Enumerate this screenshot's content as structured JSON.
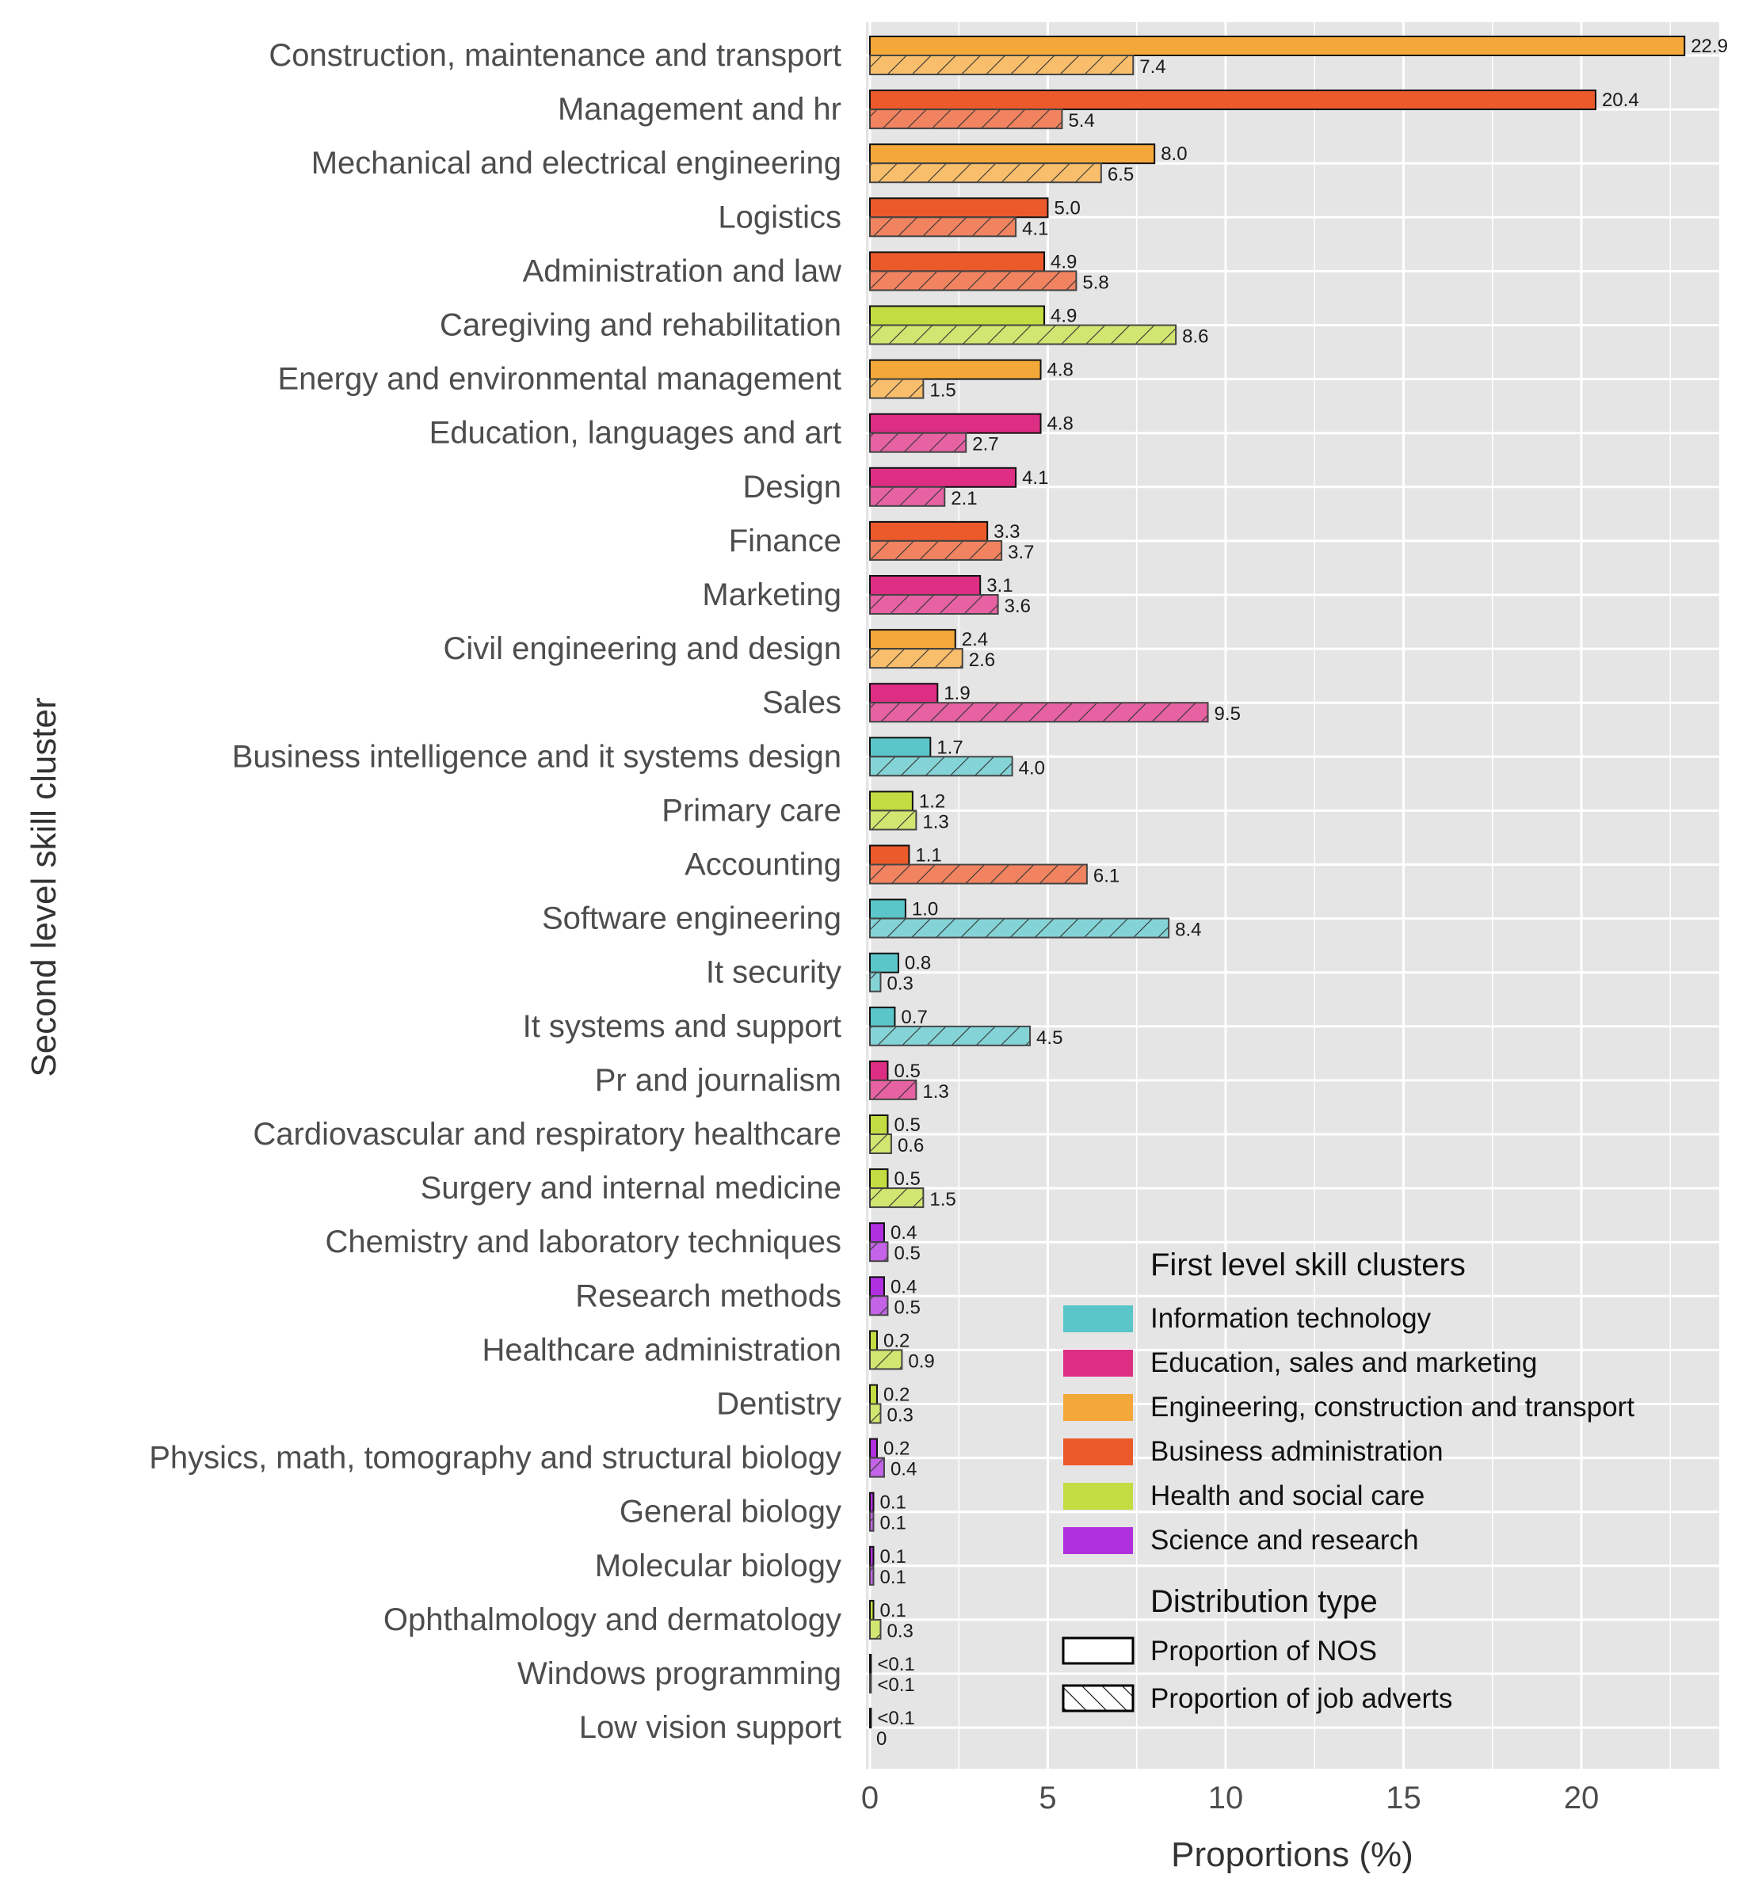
{
  "chart_data": {
    "type": "bar",
    "orientation": "horizontal",
    "xlabel": "Proportions (%)",
    "ylabel": "Second level skill cluster",
    "xlim": [
      0,
      24
    ],
    "xticks": [
      "0",
      "5",
      "10",
      "15",
      "20"
    ],
    "grid": true,
    "legend_position": "bottom-right",
    "series": [
      {
        "name": "Proportion of NOS",
        "pattern": "solid"
      },
      {
        "name": "Proportion of job adverts",
        "pattern": "hatched"
      }
    ],
    "groups": [
      {
        "name": "Information technology",
        "color": "#5bc6c9"
      },
      {
        "name": "Education, sales and marketing",
        "color": "#de2e84"
      },
      {
        "name": "Engineering, construction and transport",
        "color": "#f5a83a"
      },
      {
        "name": "Business administration",
        "color": "#ec5a2b"
      },
      {
        "name": "Health and social care",
        "color": "#c2dc42"
      },
      {
        "name": "Science and research",
        "color": "#b02fdf"
      }
    ],
    "categories": [
      {
        "label": "Construction, maintenance and transport",
        "group": 2,
        "nos": 22.9,
        "nos_label": "22.9",
        "ads": 7.4,
        "ads_label": "7.4"
      },
      {
        "label": "Management and hr",
        "group": 3,
        "nos": 20.4,
        "nos_label": "20.4",
        "ads": 5.4,
        "ads_label": "5.4"
      },
      {
        "label": "Mechanical and electrical engineering",
        "group": 2,
        "nos": 8.0,
        "nos_label": "8.0",
        "ads": 6.5,
        "ads_label": "6.5"
      },
      {
        "label": "Logistics",
        "group": 3,
        "nos": 5.0,
        "nos_label": "5.0",
        "ads": 4.1,
        "ads_label": "4.1"
      },
      {
        "label": "Administration and law",
        "group": 3,
        "nos": 4.9,
        "nos_label": "4.9",
        "ads": 5.8,
        "ads_label": "5.8"
      },
      {
        "label": "Caregiving and rehabilitation",
        "group": 4,
        "nos": 4.9,
        "nos_label": "4.9",
        "ads": 8.6,
        "ads_label": "8.6"
      },
      {
        "label": "Energy and environmental management",
        "group": 2,
        "nos": 4.8,
        "nos_label": "4.8",
        "ads": 1.5,
        "ads_label": "1.5"
      },
      {
        "label": "Education, languages and art",
        "group": 1,
        "nos": 4.8,
        "nos_label": "4.8",
        "ads": 2.7,
        "ads_label": "2.7"
      },
      {
        "label": "Design",
        "group": 1,
        "nos": 4.1,
        "nos_label": "4.1",
        "ads": 2.1,
        "ads_label": "2.1"
      },
      {
        "label": "Finance",
        "group": 3,
        "nos": 3.3,
        "nos_label": "3.3",
        "ads": 3.7,
        "ads_label": "3.7"
      },
      {
        "label": "Marketing",
        "group": 1,
        "nos": 3.1,
        "nos_label": "3.1",
        "ads": 3.6,
        "ads_label": "3.6"
      },
      {
        "label": "Civil engineering and design",
        "group": 2,
        "nos": 2.4,
        "nos_label": "2.4",
        "ads": 2.6,
        "ads_label": "2.6"
      },
      {
        "label": "Sales",
        "group": 1,
        "nos": 1.9,
        "nos_label": "1.9",
        "ads": 9.5,
        "ads_label": "9.5"
      },
      {
        "label": "Business intelligence and it systems design",
        "group": 0,
        "nos": 1.7,
        "nos_label": "1.7",
        "ads": 4.0,
        "ads_label": "4.0"
      },
      {
        "label": "Primary care",
        "group": 4,
        "nos": 1.2,
        "nos_label": "1.2",
        "ads": 1.3,
        "ads_label": "1.3"
      },
      {
        "label": "Accounting",
        "group": 3,
        "nos": 1.1,
        "nos_label": "1.1",
        "ads": 6.1,
        "ads_label": "6.1"
      },
      {
        "label": "Software engineering",
        "group": 0,
        "nos": 1.0,
        "nos_label": "1.0",
        "ads": 8.4,
        "ads_label": "8.4"
      },
      {
        "label": "It security",
        "group": 0,
        "nos": 0.8,
        "nos_label": "0.8",
        "ads": 0.3,
        "ads_label": "0.3"
      },
      {
        "label": "It systems and support",
        "group": 0,
        "nos": 0.7,
        "nos_label": "0.7",
        "ads": 4.5,
        "ads_label": "4.5"
      },
      {
        "label": "Pr and journalism",
        "group": 1,
        "nos": 0.5,
        "nos_label": "0.5",
        "ads": 1.3,
        "ads_label": "1.3"
      },
      {
        "label": "Cardiovascular and respiratory healthcare",
        "group": 4,
        "nos": 0.5,
        "nos_label": "0.5",
        "ads": 0.6,
        "ads_label": "0.6"
      },
      {
        "label": "Surgery and internal medicine",
        "group": 4,
        "nos": 0.5,
        "nos_label": "0.5",
        "ads": 1.5,
        "ads_label": "1.5"
      },
      {
        "label": "Chemistry and laboratory techniques",
        "group": 5,
        "nos": 0.4,
        "nos_label": "0.4",
        "ads": 0.5,
        "ads_label": "0.5"
      },
      {
        "label": "Research methods",
        "group": 5,
        "nos": 0.4,
        "nos_label": "0.4",
        "ads": 0.5,
        "ads_label": "0.5"
      },
      {
        "label": "Healthcare administration",
        "group": 4,
        "nos": 0.2,
        "nos_label": "0.2",
        "ads": 0.9,
        "ads_label": "0.9"
      },
      {
        "label": "Dentistry",
        "group": 4,
        "nos": 0.2,
        "nos_label": "0.2",
        "ads": 0.3,
        "ads_label": "0.3"
      },
      {
        "label": "Physics, math, tomography and structural biology",
        "group": 5,
        "nos": 0.2,
        "nos_label": "0.2",
        "ads": 0.4,
        "ads_label": "0.4"
      },
      {
        "label": "General biology",
        "group": 5,
        "nos": 0.1,
        "nos_label": "0.1",
        "ads": 0.1,
        "ads_label": "0.1"
      },
      {
        "label": "Molecular biology",
        "group": 5,
        "nos": 0.1,
        "nos_label": "0.1",
        "ads": 0.1,
        "ads_label": "0.1"
      },
      {
        "label": "Ophthalmology and dermatology",
        "group": 4,
        "nos": 0.1,
        "nos_label": "0.1",
        "ads": 0.3,
        "ads_label": "0.3"
      },
      {
        "label": "Windows programming",
        "group": 0,
        "nos": 0.03,
        "nos_label": "<0.1",
        "ads": 0.03,
        "ads_label": "<0.1"
      },
      {
        "label": "Low vision support",
        "group": 4,
        "nos": 0.03,
        "nos_label": "<0.1",
        "ads": 0,
        "ads_label": "0"
      }
    ]
  },
  "legend": {
    "groups_title": "First level skill clusters",
    "dist_title": "Distribution type"
  }
}
